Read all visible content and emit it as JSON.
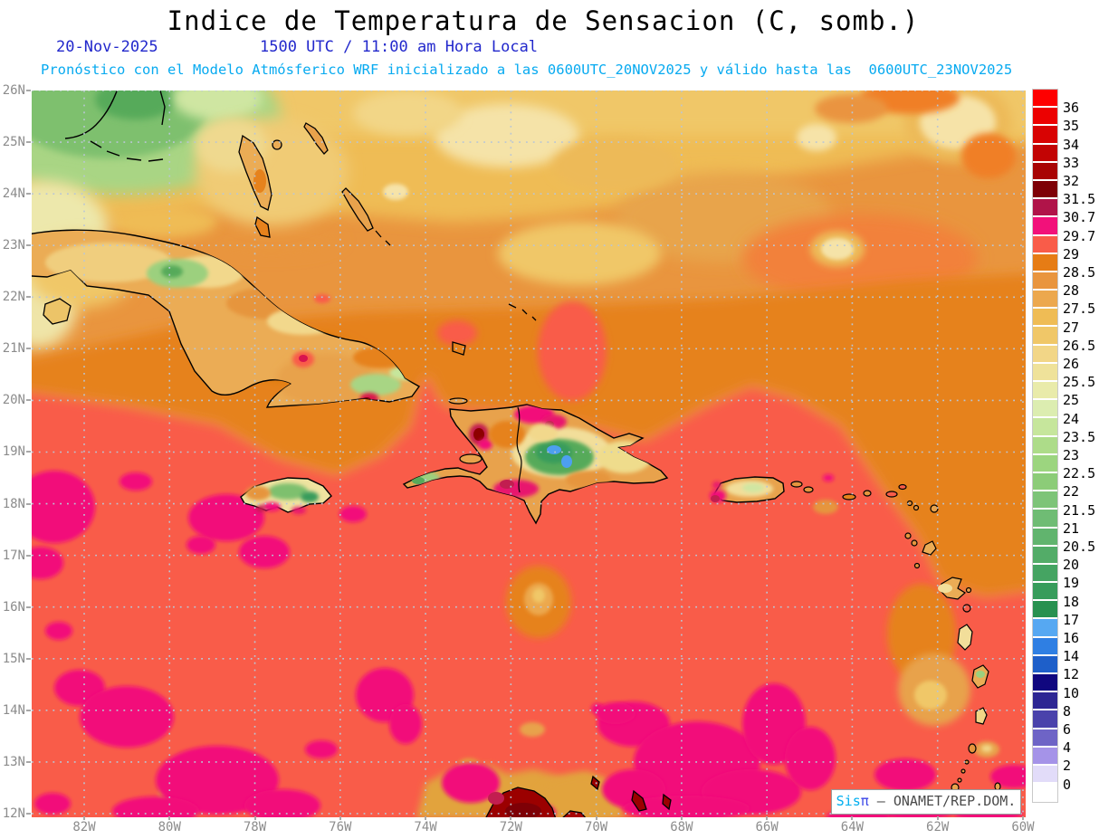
{
  "header": {
    "title": "Indice de Temperatura de Sensacion (C, somb.)",
    "date": "20-Nov-2025",
    "time": "1500 UTC / 11:00 am Hora Local",
    "forecast_line": "Pronóstico con el Modelo Atmósferico WRF inicializado a las 0600UTC_20NOV2025 y válido hasta las  0600UTC_23NOV2025"
  },
  "map": {
    "lat_labels": [
      "26N",
      "25N",
      "24N",
      "23N",
      "22N",
      "21N",
      "20N",
      "19N",
      "18N",
      "17N",
      "16N",
      "15N",
      "14N",
      "13N",
      "12N"
    ],
    "lon_labels": [
      "82W",
      "80W",
      "78W",
      "76W",
      "74W",
      "72W",
      "70W",
      "68W",
      "66W",
      "64W",
      "62W",
      "60W"
    ],
    "watermark": {
      "brand_prefix": "Sis",
      "brand_symbol": "π",
      "sep": " – ",
      "org": "ONAMET/REP.DOM."
    }
  },
  "legend": {
    "labels": [
      "36",
      "35",
      "34",
      "33",
      "32",
      "31.5",
      "30.7",
      "29.7",
      "29",
      "28.5",
      "28",
      "27.5",
      "27",
      "26.5",
      "26",
      "25.5",
      "25",
      "24",
      "23.5",
      "23",
      "22.5",
      "22",
      "21.5",
      "21",
      "20.5",
      "20",
      "19",
      "18",
      "17",
      "16",
      "14",
      "12",
      "10",
      "8",
      "6",
      "4",
      "2",
      "0"
    ],
    "colors": [
      "#fe0000",
      "#ec0101",
      "#d80303",
      "#c20404",
      "#a80404",
      "#7e0006",
      "#b01449",
      "#f2117a",
      "#f95c49",
      "#e67c15",
      "#e9953e",
      "#eca84e",
      "#efbc55",
      "#f0c768",
      "#f2d687",
      "#efe29a",
      "#e9ebaa",
      "#dcedb0",
      "#c6e69c",
      "#addc89",
      "#9cd57f",
      "#8ccc78",
      "#7dc478",
      "#6fbc74",
      "#61b46e",
      "#53ac68",
      "#45a462",
      "#379c5b",
      "#289150",
      "#56a8f2",
      "#2f7fe3",
      "#1e5fc9",
      "#10077f",
      "#2d2693",
      "#4a42ab",
      "#6e64c6",
      "#a593e8",
      "#e2dcf9",
      "#ffffff"
    ]
  },
  "palette": {
    "sea_hot_salmon": "#f95c49",
    "sea_very_hot_magenta": "#f2117a",
    "sea_orange": "#e6821c",
    "north_tan": "#efbc55",
    "cool_green": "#7ec06e",
    "mountain_blue": "#4d9ff0",
    "land_dark_red": "#9b0000",
    "text_blue": "#2228cc",
    "text_cyan": "#07aaf0",
    "axis_gray": "#8c8c8c"
  }
}
